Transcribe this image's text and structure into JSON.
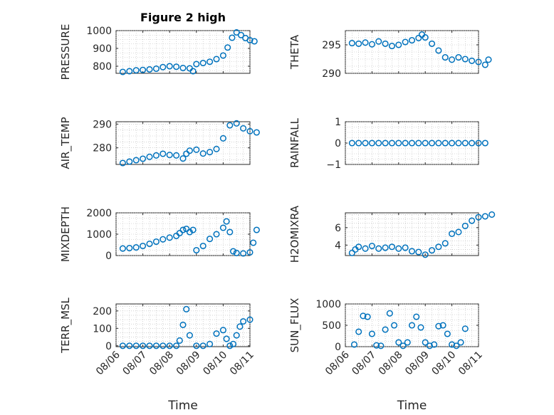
{
  "figure_title": "Figure 2 high",
  "colors": {
    "marker": "#0072bd",
    "axes": "#262626",
    "grid": "#b8b8b8"
  },
  "chart_data": [
    {
      "type": "scatter",
      "title": "Figure 2 high",
      "ylabel": "PRESSURE",
      "xlabel": "",
      "xlim": [
        "08/06",
        "08/11"
      ],
      "ylim": [
        760,
        1000
      ],
      "yticks": [
        800,
        900,
        1000
      ],
      "x_ticklabels": [],
      "grid": true,
      "points": [
        [
          "08/06 06:00",
          768
        ],
        [
          "08/06 12:00",
          772
        ],
        [
          "08/06 18:00",
          777
        ],
        [
          "08/07 00:00",
          779
        ],
        [
          "08/07 06:00",
          782
        ],
        [
          "08/07 12:00",
          786
        ],
        [
          "08/07 18:00",
          795
        ],
        [
          "08/08 00:00",
          800
        ],
        [
          "08/08 06:00",
          797
        ],
        [
          "08/08 12:00",
          790
        ],
        [
          "08/08 18:00",
          788
        ],
        [
          "08/08 21:00",
          772
        ],
        [
          "08/09 00:00",
          812
        ],
        [
          "08/09 06:00",
          818
        ],
        [
          "08/09 12:00",
          825
        ],
        [
          "08/09 18:00",
          840
        ],
        [
          "08/10 00:00",
          860
        ],
        [
          "08/10 04:00",
          905
        ],
        [
          "08/10 08:00",
          960
        ],
        [
          "08/10 12:00",
          990
        ],
        [
          "08/10 16:00",
          975
        ],
        [
          "08/10 20:00",
          958
        ],
        [
          "08/11 00:00",
          946
        ],
        [
          "08/11 04:00",
          940
        ]
      ]
    },
    {
      "type": "scatter",
      "title": "",
      "ylabel": "THETA",
      "xlabel": "",
      "xlim": [
        "08/06",
        "08/11"
      ],
      "ylim": [
        290,
        297.5
      ],
      "yticks": [
        290,
        295
      ],
      "x_ticklabels": [],
      "grid": true,
      "points": [
        [
          "08/06 06:00",
          295.3
        ],
        [
          "08/06 12:00",
          295.2
        ],
        [
          "08/06 18:00",
          295.4
        ],
        [
          "08/07 00:00",
          295.1
        ],
        [
          "08/07 06:00",
          295.6
        ],
        [
          "08/07 12:00",
          295.2
        ],
        [
          "08/07 18:00",
          294.8
        ],
        [
          "08/08 00:00",
          295.0
        ],
        [
          "08/08 06:00",
          295.5
        ],
        [
          "08/08 12:00",
          295.8
        ],
        [
          "08/08 18:00",
          296.2
        ],
        [
          "08/08 21:00",
          296.8
        ],
        [
          "08/09 00:00",
          296.3
        ],
        [
          "08/09 06:00",
          295.2
        ],
        [
          "08/09 12:00",
          294.0
        ],
        [
          "08/09 18:00",
          292.8
        ],
        [
          "08/10 00:00",
          292.4
        ],
        [
          "08/10 06:00",
          292.8
        ],
        [
          "08/10 12:00",
          292.5
        ],
        [
          "08/10 18:00",
          292.2
        ],
        [
          "08/11 00:00",
          292.0
        ],
        [
          "08/11 06:00",
          291.5
        ],
        [
          "08/11 09:00",
          292.4
        ]
      ]
    },
    {
      "type": "scatter",
      "title": "",
      "ylabel": "AIR_TEMP",
      "xlabel": "",
      "xlim": [
        "08/06",
        "08/11"
      ],
      "ylim": [
        273,
        291
      ],
      "yticks": [
        280,
        290
      ],
      "x_ticklabels": [],
      "grid": true,
      "points": [
        [
          "08/06 06:00",
          273.6
        ],
        [
          "08/06 12:00",
          274.2
        ],
        [
          "08/06 18:00",
          274.8
        ],
        [
          "08/07 00:00",
          275.4
        ],
        [
          "08/07 06:00",
          276.2
        ],
        [
          "08/07 12:00",
          276.8
        ],
        [
          "08/07 18:00",
          277.5
        ],
        [
          "08/08 00:00",
          277.0
        ],
        [
          "08/08 06:00",
          276.8
        ],
        [
          "08/08 12:00",
          275.5
        ],
        [
          "08/08 15:00",
          277.5
        ],
        [
          "08/08 18:00",
          278.8
        ],
        [
          "08/09 00:00",
          279.2
        ],
        [
          "08/09 06:00",
          277.6
        ],
        [
          "08/09 12:00",
          278.2
        ],
        [
          "08/09 18:00",
          279.5
        ],
        [
          "08/10 00:00",
          284.0
        ],
        [
          "08/10 06:00",
          289.5
        ],
        [
          "08/10 12:00",
          290.3
        ],
        [
          "08/10 18:00",
          288.2
        ],
        [
          "08/11 00:00",
          287.0
        ],
        [
          "08/11 06:00",
          286.5
        ]
      ]
    },
    {
      "type": "scatter",
      "title": "",
      "ylabel": "RAINFALL",
      "xlabel": "",
      "xlim": [
        "08/06",
        "08/11"
      ],
      "ylim": [
        -1,
        1
      ],
      "yticks": [
        -1,
        0,
        1
      ],
      "x_ticklabels": [],
      "grid": true,
      "points": [
        [
          "08/06 06:00",
          0
        ],
        [
          "08/06 12:00",
          0
        ],
        [
          "08/06 18:00",
          0
        ],
        [
          "08/07 00:00",
          0
        ],
        [
          "08/07 06:00",
          0
        ],
        [
          "08/07 12:00",
          0
        ],
        [
          "08/07 18:00",
          0
        ],
        [
          "08/08 00:00",
          0
        ],
        [
          "08/08 06:00",
          0
        ],
        [
          "08/08 12:00",
          0
        ],
        [
          "08/08 18:00",
          0
        ],
        [
          "08/09 00:00",
          0
        ],
        [
          "08/09 06:00",
          0
        ],
        [
          "08/09 12:00",
          0
        ],
        [
          "08/09 18:00",
          0
        ],
        [
          "08/10 00:00",
          0
        ],
        [
          "08/10 06:00",
          0
        ],
        [
          "08/10 12:00",
          0
        ],
        [
          "08/10 18:00",
          0
        ],
        [
          "08/11 00:00",
          0
        ],
        [
          "08/11 06:00",
          0
        ]
      ]
    },
    {
      "type": "scatter",
      "title": "",
      "ylabel": "MIXDEPTH",
      "xlabel": "",
      "xlim": [
        "08/06",
        "08/11"
      ],
      "ylim": [
        0,
        2000
      ],
      "yticks": [
        0,
        1000,
        2000
      ],
      "x_ticklabels": [],
      "grid": true,
      "points": [
        [
          "08/06 06:00",
          330
        ],
        [
          "08/06 12:00",
          350
        ],
        [
          "08/06 18:00",
          380
        ],
        [
          "08/07 00:00",
          450
        ],
        [
          "08/07 06:00",
          550
        ],
        [
          "08/07 12:00",
          650
        ],
        [
          "08/07 18:00",
          760
        ],
        [
          "08/08 00:00",
          840
        ],
        [
          "08/08 06:00",
          920
        ],
        [
          "08/08 09:00",
          1050
        ],
        [
          "08/08 12:00",
          1200
        ],
        [
          "08/08 15:00",
          1250
        ],
        [
          "08/08 18:00",
          1100
        ],
        [
          "08/08 21:00",
          1200
        ],
        [
          "08/09 00:00",
          250
        ],
        [
          "08/09 06:00",
          450
        ],
        [
          "08/09 12:00",
          780
        ],
        [
          "08/09 18:00",
          1000
        ],
        [
          "08/10 00:00",
          1300
        ],
        [
          "08/10 03:00",
          1600
        ],
        [
          "08/10 06:00",
          1100
        ],
        [
          "08/10 09:00",
          200
        ],
        [
          "08/10 12:00",
          120
        ],
        [
          "08/10 18:00",
          100
        ],
        [
          "08/11 00:00",
          150
        ],
        [
          "08/11 03:00",
          600
        ],
        [
          "08/11 06:00",
          1200
        ]
      ]
    },
    {
      "type": "scatter",
      "title": "",
      "ylabel": "H2OMIXRA",
      "xlabel": "",
      "xlim": [
        "08/06",
        "08/11"
      ],
      "ylim": [
        2.8,
        7.7
      ],
      "yticks": [
        4,
        6
      ],
      "x_ticklabels": [],
      "grid": true,
      "points": [
        [
          "08/06 06:00",
          3.1
        ],
        [
          "08/06 09:00",
          3.5
        ],
        [
          "08/06 12:00",
          3.8
        ],
        [
          "08/06 18:00",
          3.6
        ],
        [
          "08/07 00:00",
          3.9
        ],
        [
          "08/07 06:00",
          3.6
        ],
        [
          "08/07 12:00",
          3.7
        ],
        [
          "08/07 18:00",
          3.8
        ],
        [
          "08/08 00:00",
          3.6
        ],
        [
          "08/08 06:00",
          3.7
        ],
        [
          "08/08 12:00",
          3.3
        ],
        [
          "08/08 18:00",
          3.2
        ],
        [
          "08/09 00:00",
          2.9
        ],
        [
          "08/09 06:00",
          3.4
        ],
        [
          "08/09 12:00",
          3.8
        ],
        [
          "08/09 18:00",
          4.2
        ],
        [
          "08/10 00:00",
          5.3
        ],
        [
          "08/10 06:00",
          5.5
        ],
        [
          "08/10 12:00",
          6.2
        ],
        [
          "08/10 18:00",
          6.8
        ],
        [
          "08/11 00:00",
          7.2
        ],
        [
          "08/11 06:00",
          7.3
        ],
        [
          "08/11 12:00",
          7.5
        ]
      ]
    },
    {
      "type": "scatter",
      "title": "",
      "ylabel": "TERR_MSL",
      "xlabel": "Time",
      "xlim": [
        "08/06",
        "08/11"
      ],
      "ylim": [
        -5,
        240
      ],
      "yticks": [
        0,
        100,
        200
      ],
      "x_ticklabels": [
        "08/06",
        "08/07",
        "08/08",
        "08/09",
        "08/10",
        "08/11"
      ],
      "grid": true,
      "points": [
        [
          "08/06 06:00",
          0
        ],
        [
          "08/06 12:00",
          0
        ],
        [
          "08/06 18:00",
          0
        ],
        [
          "08/07 00:00",
          0
        ],
        [
          "08/07 06:00",
          0
        ],
        [
          "08/07 12:00",
          0
        ],
        [
          "08/07 18:00",
          0
        ],
        [
          "08/08 00:00",
          0
        ],
        [
          "08/08 06:00",
          0
        ],
        [
          "08/08 09:00",
          30
        ],
        [
          "08/08 12:00",
          120
        ],
        [
          "08/08 15:00",
          210
        ],
        [
          "08/08 18:00",
          60
        ],
        [
          "08/09 00:00",
          0
        ],
        [
          "08/09 06:00",
          0
        ],
        [
          "08/09 12:00",
          10
        ],
        [
          "08/09 18:00",
          70
        ],
        [
          "08/10 00:00",
          90
        ],
        [
          "08/10 03:00",
          40
        ],
        [
          "08/10 06:00",
          0
        ],
        [
          "08/10 09:00",
          10
        ],
        [
          "08/10 12:00",
          60
        ],
        [
          "08/10 15:00",
          110
        ],
        [
          "08/10 18:00",
          140
        ],
        [
          "08/11 00:00",
          150
        ]
      ]
    },
    {
      "type": "scatter",
      "title": "",
      "ylabel": "SUN_FLUX",
      "xlabel": "Time",
      "xlim": [
        "08/06",
        "08/11"
      ],
      "ylim": [
        0,
        1000
      ],
      "yticks": [
        0,
        500,
        1000
      ],
      "x_ticklabels": [
        "08/06",
        "08/07",
        "08/08",
        "08/09",
        "08/10",
        "08/11"
      ],
      "grid": true,
      "points": [
        [
          "08/06 08:00",
          50
        ],
        [
          "08/06 12:00",
          350
        ],
        [
          "08/06 16:00",
          720
        ],
        [
          "08/06 20:00",
          700
        ],
        [
          "08/07 00:00",
          300
        ],
        [
          "08/07 04:00",
          30
        ],
        [
          "08/07 08:00",
          20
        ],
        [
          "08/07 12:00",
          400
        ],
        [
          "08/07 16:00",
          780
        ],
        [
          "08/07 20:00",
          500
        ],
        [
          "08/08 00:00",
          100
        ],
        [
          "08/08 04:00",
          20
        ],
        [
          "08/08 08:00",
          100
        ],
        [
          "08/08 12:00",
          500
        ],
        [
          "08/08 16:00",
          700
        ],
        [
          "08/08 20:00",
          450
        ],
        [
          "08/09 00:00",
          100
        ],
        [
          "08/09 04:00",
          20
        ],
        [
          "08/09 08:00",
          50
        ],
        [
          "08/09 12:00",
          480
        ],
        [
          "08/09 16:00",
          500
        ],
        [
          "08/09 20:00",
          300
        ],
        [
          "08/10 00:00",
          50
        ],
        [
          "08/10 04:00",
          20
        ],
        [
          "08/10 08:00",
          100
        ],
        [
          "08/10 12:00",
          420
        ]
      ]
    }
  ]
}
